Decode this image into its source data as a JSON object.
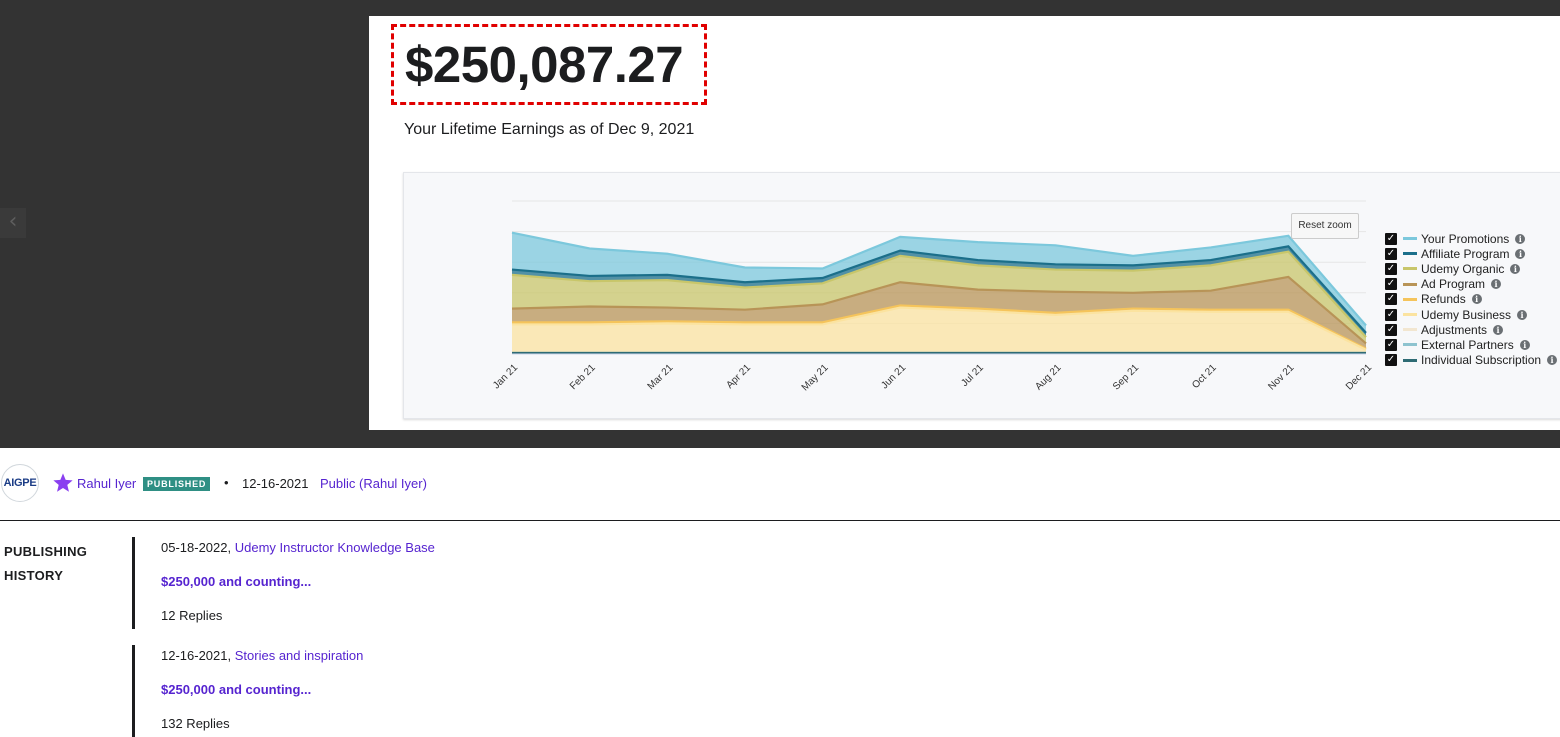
{
  "viewer": {
    "prev_glyph": "‹",
    "earnings_amount": "$250,087.27",
    "earnings_caption": "Your Lifetime Earnings as of Dec 9, 2021",
    "reset_zoom_label": "Reset zoom",
    "highlight_color": "#e00000"
  },
  "chart_data": {
    "type": "area",
    "stacked": true,
    "categories": [
      "Jan 21",
      "Feb 21",
      "Mar 21",
      "Apr 21",
      "May 21",
      "Jun 21",
      "Jul 21",
      "Aug 21",
      "Sep 21",
      "Oct 21",
      "Nov 21",
      "Dec 21"
    ],
    "y_axis_labels_shown": false,
    "grid": true,
    "legend_position": "right",
    "series": [
      {
        "name": "Your Promotions",
        "color": "#7cc8dc",
        "values": [
          3.5,
          2.6,
          2.0,
          1.4,
          0.9,
          1.3,
          1.7,
          1.8,
          0.9,
          1.2,
          1.0,
          0.7
        ]
      },
      {
        "name": "Affiliate Program",
        "color": "#1b6f8a",
        "values": [
          0.5,
          0.5,
          0.5,
          0.5,
          0.5,
          0.5,
          0.5,
          0.5,
          0.5,
          0.5,
          0.5,
          0.4
        ]
      },
      {
        "name": "Udemy Organic",
        "color": "#c8c66a",
        "values": [
          3.2,
          2.4,
          2.6,
          2.1,
          2.0,
          2.5,
          2.3,
          2.1,
          2.1,
          2.4,
          2.4,
          0.6
        ]
      },
      {
        "name": "Ad Program",
        "color": "#b89457",
        "values": [
          1.3,
          1.5,
          1.3,
          1.2,
          1.7,
          2.2,
          1.8,
          2.0,
          1.5,
          1.8,
          3.1,
          0.5
        ]
      },
      {
        "name": "Refunds",
        "color": "#f5c45b",
        "values": [
          0.2,
          0.2,
          0.2,
          0.2,
          0.2,
          0.2,
          0.2,
          0.2,
          0.2,
          0.2,
          0.2,
          0.1
        ]
      },
      {
        "name": "Udemy Business",
        "color": "#fbe3a0",
        "values": [
          2.7,
          2.7,
          2.8,
          2.7,
          2.7,
          4.3,
          4.0,
          3.6,
          4.0,
          3.9,
          3.9,
          0.3
        ]
      },
      {
        "name": "Adjustments",
        "color": "#f2e6d0",
        "values": [
          0,
          0,
          0,
          0,
          0,
          0,
          0,
          0,
          0,
          0,
          0,
          0
        ]
      },
      {
        "name": "External Partners",
        "color": "#8ec3cf",
        "values": [
          0,
          0,
          0,
          0,
          0,
          0,
          0,
          0,
          0,
          0,
          0,
          0
        ]
      },
      {
        "name": "Individual Subscription",
        "color": "#2e6b74",
        "values": [
          0.1,
          0.1,
          0.1,
          0.1,
          0.1,
          0.1,
          0.1,
          0.1,
          0.1,
          0.1,
          0.1,
          0.1
        ]
      }
    ]
  },
  "post": {
    "avatar_text": "AIGPE",
    "author": "Rahul Iyer",
    "badge": "PUBLISHED",
    "separator_dot": "•",
    "date": "12-16-2021",
    "visibility": "Public (Rahul Iyer)"
  },
  "history": {
    "title_line1": "PUBLISHING",
    "title_line2": "HISTORY",
    "entries": [
      {
        "date": "05-18-2022,",
        "board": "Udemy Instructor Knowledge Base",
        "subject": "$250,000 and counting...",
        "replies": "12 Replies"
      },
      {
        "date": "12-16-2021,",
        "board": "Stories and inspiration",
        "subject": "$250,000 and counting...",
        "replies": "132 Replies"
      }
    ]
  }
}
